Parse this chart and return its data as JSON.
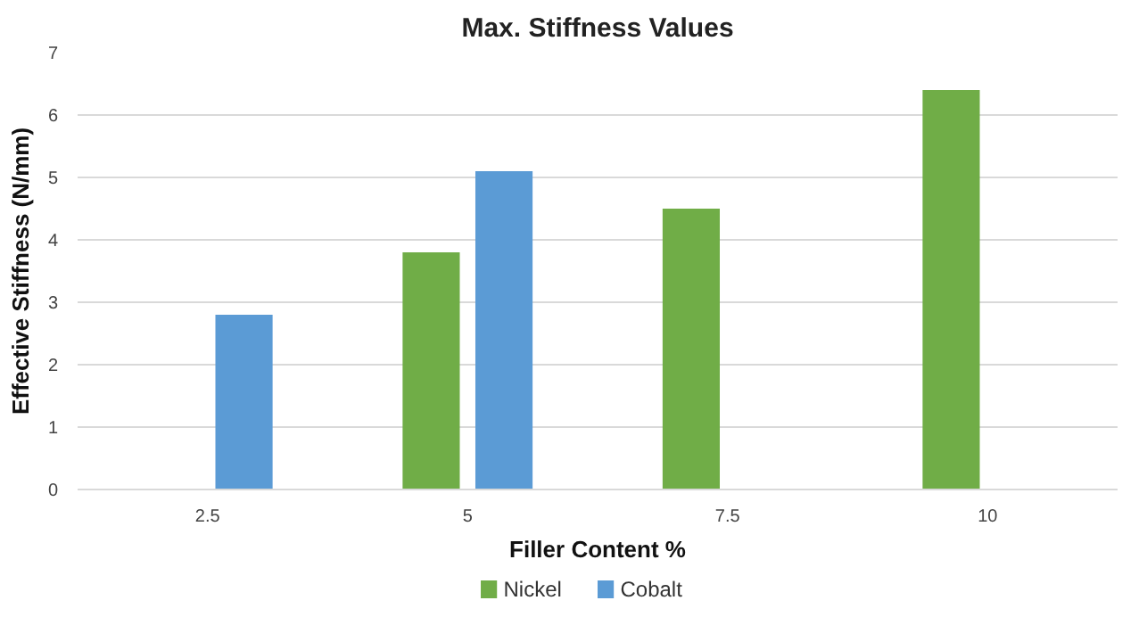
{
  "chart_data": {
    "type": "bar",
    "title": "Max. Stiffness Values",
    "xlabel": "Filler Content %",
    "ylabel": "Effective Stiffness (N/mm)",
    "categories": [
      "2.5",
      "5",
      "7.5",
      "10"
    ],
    "series": [
      {
        "name": "Nickel",
        "color": "#70ad47",
        "values": [
          null,
          3.8,
          4.5,
          6.4
        ]
      },
      {
        "name": "Cobalt",
        "color": "#5b9bd5",
        "values": [
          2.8,
          5.1,
          null,
          null
        ]
      }
    ],
    "ylim": [
      0,
      7
    ],
    "yticks": [
      0,
      1,
      2,
      3,
      4,
      5,
      6,
      7
    ],
    "grid": "y",
    "legend": "bottom"
  }
}
